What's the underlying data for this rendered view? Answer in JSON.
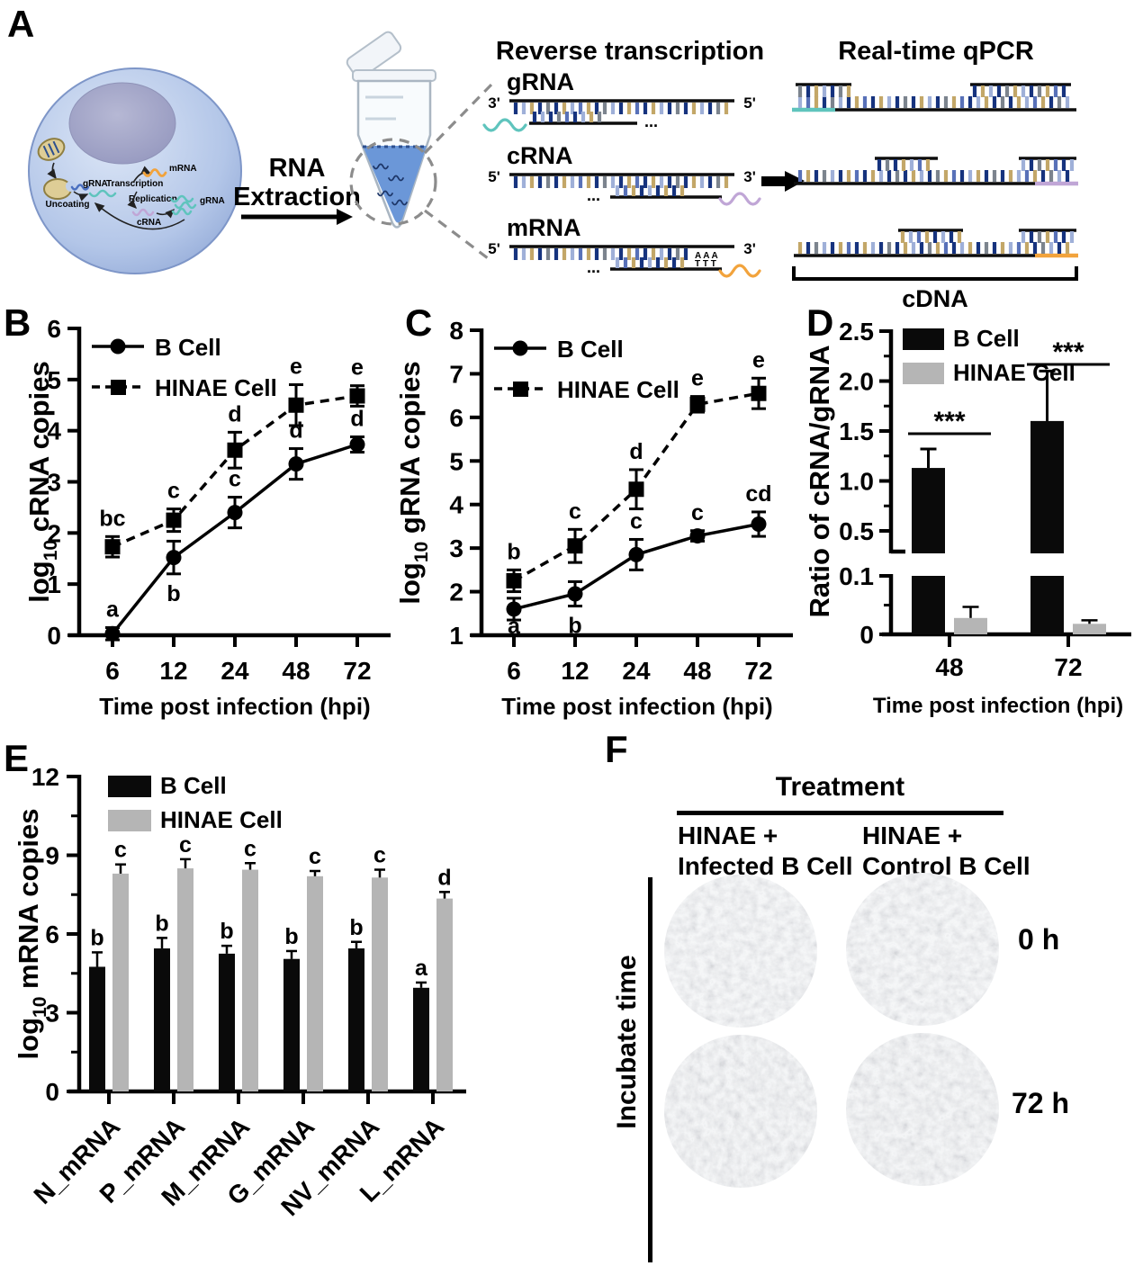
{
  "figure": {
    "panel_labels": {
      "a": "A",
      "b": "B",
      "c": "C",
      "d": "D",
      "e": "E",
      "f": "F"
    }
  },
  "colors": {
    "bar_black": "#0a0a0a",
    "bar_gray": "#b5b5b5",
    "liquid_blue": "#6b97d8",
    "primer_teal": "#5fc4bd",
    "primer_purple": "#c0a6d6",
    "primer_orange": "#f2a33c",
    "base_palette": [
      "#16337e",
      "#c3a768",
      "#9fb0d8",
      "#7c848e",
      "#5871b8"
    ]
  },
  "panel_a": {
    "cell_labels": {
      "uncoating": "Uncoating",
      "grna": "gRNA",
      "transcription": "Transcription",
      "mrna": "mRNA",
      "replication": "Replication",
      "crna": "cRNA",
      "grna_product": "gRNA"
    },
    "extraction": {
      "line1": "RNA",
      "line2": "Extraction"
    },
    "rt": {
      "title": "Reverse transcription",
      "rows": [
        {
          "name": "gRNA",
          "left_end": "3'",
          "right_end": "5'",
          "primer_side": "left",
          "primer_color_key": "primer_teal",
          "dots": "..."
        },
        {
          "name": "cRNA",
          "left_end": "5'",
          "right_end": "3'",
          "primer_side": "right",
          "primer_color_key": "primer_purple",
          "dots": "..."
        },
        {
          "name": "mRNA",
          "left_end": "5'",
          "right_end": "3'",
          "primer_side": "right",
          "primer_color_key": "primer_orange",
          "dots": "...",
          "poly_a": "A A A",
          "poly_t": "T T T"
        }
      ]
    },
    "qpcr": {
      "title": "Real-time qPCR",
      "bracket_label": "cDNA"
    }
  },
  "chart_data": [
    {
      "id": "B",
      "type": "line",
      "xlabel": "Time post infection (hpi)",
      "ylabel_prefix": "log",
      "ylabel_sub": "10",
      "ylabel_rest": " cRNA copies",
      "x_ticklabels": [
        "6",
        "12",
        "24",
        "48",
        "72"
      ],
      "ylim": [
        0,
        6
      ],
      "yticks": [
        "0",
        "1",
        "2",
        "3",
        "4",
        "5",
        "6"
      ],
      "legend_position": "top-left",
      "series": [
        {
          "name": "B Cell",
          "marker": "circle",
          "line": "solid",
          "values": [
            0.03,
            1.52,
            2.4,
            3.35,
            3.73
          ],
          "errors": [
            0.12,
            0.32,
            0.3,
            0.3,
            0.15
          ],
          "letters": [
            "a",
            "b",
            "c",
            "d",
            "d"
          ],
          "letter_pos": [
            "above",
            "below",
            "above",
            "above",
            "above"
          ]
        },
        {
          "name": "HINAE Cell",
          "marker": "square",
          "line": "dashed",
          "values": [
            1.73,
            2.25,
            3.62,
            4.5,
            4.68
          ],
          "errors": [
            0.2,
            0.22,
            0.35,
            0.4,
            0.2
          ],
          "letters": [
            "bc",
            "c",
            "d",
            "e",
            "e"
          ],
          "letter_pos": [
            "above",
            "above",
            "above",
            "above",
            "above"
          ]
        }
      ]
    },
    {
      "id": "C",
      "type": "line",
      "xlabel": "Time post infection (hpi)",
      "ylabel_prefix": "log",
      "ylabel_sub": "10",
      "ylabel_rest": " gRNA copies",
      "x_ticklabels": [
        "6",
        "12",
        "24",
        "48",
        "72"
      ],
      "ylim": [
        1,
        8
      ],
      "yticks": [
        "1",
        "2",
        "3",
        "4",
        "5",
        "6",
        "7",
        "8"
      ],
      "legend_position": "top-left",
      "series": [
        {
          "name": "B Cell",
          "marker": "circle",
          "line": "solid",
          "values": [
            1.6,
            1.95,
            2.85,
            3.28,
            3.55
          ],
          "errors": [
            0.25,
            0.28,
            0.35,
            0.12,
            0.28
          ],
          "letters": [
            "a",
            "b",
            "c",
            "c",
            "cd"
          ],
          "letter_pos": [
            "below",
            "below",
            "above",
            "above",
            "above"
          ]
        },
        {
          "name": "HINAE Cell",
          "marker": "square",
          "line": "dashed",
          "values": [
            2.25,
            3.05,
            4.35,
            6.3,
            6.55
          ],
          "errors": [
            0.25,
            0.38,
            0.45,
            0.18,
            0.35
          ],
          "letters": [
            "b",
            "c",
            "d",
            "e",
            "e"
          ],
          "letter_pos": [
            "above",
            "above",
            "above",
            "above",
            "above"
          ]
        }
      ]
    },
    {
      "id": "D",
      "type": "bar_broken",
      "xlabel": "Time post infection (hpi)",
      "ylabel": "Ratio of cRNA/gRNA",
      "x_ticklabels": [
        "48",
        "72"
      ],
      "top_axis": {
        "tick_labels": [
          "0.5",
          "1.0",
          "1.5",
          "2.0",
          "2.5"
        ],
        "tick_values": [
          0.5,
          1.0,
          1.5,
          2.0,
          2.5
        ],
        "minor": [
          0.75,
          1.25,
          1.75,
          2.25
        ],
        "range": [
          0.27,
          2.5
        ]
      },
      "bottom_axis": {
        "tick_labels": [
          "0",
          "0.1"
        ],
        "tick_values": [
          0,
          0.1
        ],
        "minor": [
          0.05
        ],
        "range": [
          0,
          0.1
        ]
      },
      "series": [
        {
          "name": "B Cell",
          "color": "#0a0a0a",
          "values": [
            1.13,
            1.6
          ],
          "errors": [
            0.19,
            0.5
          ]
        },
        {
          "name": "HINAE Cell",
          "color": "#b5b5b5",
          "values": [
            0.028,
            0.018
          ],
          "errors": [
            0.019,
            0.006
          ]
        }
      ],
      "significance": [
        "***",
        "***"
      ]
    },
    {
      "id": "E",
      "type": "grouped_bar",
      "ylabel_prefix": "log",
      "ylabel_sub": "10",
      "ylabel_rest": " mRNA copies",
      "categories": [
        "N_mRNA",
        "P_mRNA",
        "M_mRNA",
        "G_mRNA",
        "NV_mRNA",
        "L_mRNA"
      ],
      "ylim": [
        0,
        12
      ],
      "yticks": [
        "0",
        "3",
        "6",
        "9",
        "12"
      ],
      "minor_ticks": [
        1.5,
        4.5,
        7.5,
        10.5
      ],
      "series": [
        {
          "name": "B Cell",
          "color": "#0a0a0a",
          "values": [
            4.75,
            5.45,
            5.25,
            5.05,
            5.45,
            3.95
          ],
          "errors": [
            0.55,
            0.4,
            0.3,
            0.3,
            0.25,
            0.2
          ],
          "letters": [
            "b",
            "b",
            "b",
            "b",
            "b",
            "a"
          ]
        },
        {
          "name": "HINAE Cell",
          "color": "#b5b5b5",
          "values": [
            8.3,
            8.5,
            8.45,
            8.2,
            8.15,
            7.35
          ],
          "errors": [
            0.35,
            0.35,
            0.25,
            0.2,
            0.3,
            0.25
          ],
          "letters": [
            "c",
            "c",
            "c",
            "c",
            "c",
            "d"
          ]
        }
      ]
    }
  ],
  "panel_f": {
    "treatment_title": "Treatment",
    "columns": [
      {
        "line1": "HINAE +",
        "line2": "Infected B Cell"
      },
      {
        "line1": "HINAE +",
        "line2": "Control B Cell"
      }
    ],
    "row_labels": [
      "0 h",
      "72 h"
    ],
    "axis_label": "Incubate time"
  }
}
